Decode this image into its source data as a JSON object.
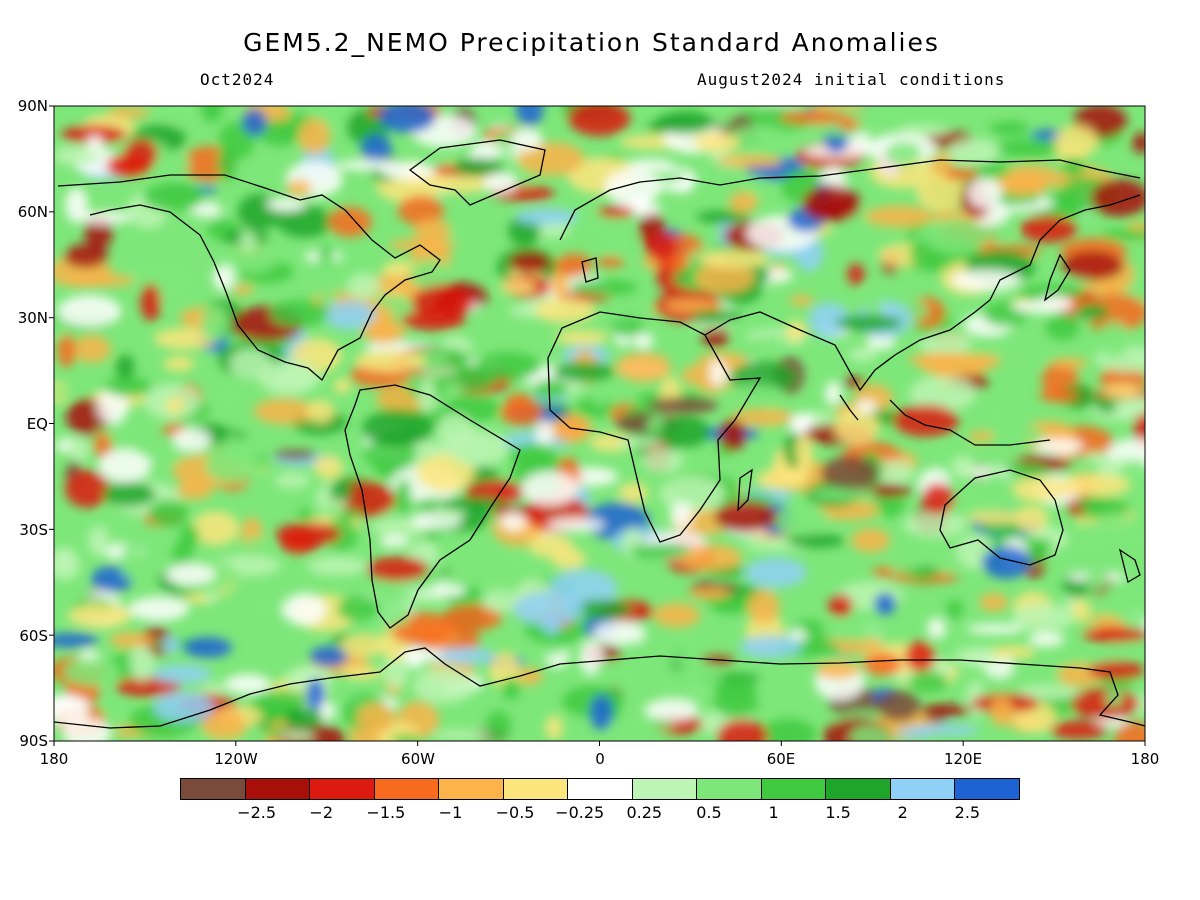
{
  "title": "GEM5.2_NEMO Precipitation Standard Anomalies",
  "valid_month": "Oct2024",
  "initial_conditions": "August2024 initial conditions",
  "map": {
    "lat_labels": [
      "90N",
      "60N",
      "30N",
      "EQ",
      "30S",
      "60S",
      "90S"
    ],
    "lon_labels": [
      "180",
      "120W",
      "60W",
      "0",
      "60E",
      "120E",
      "180"
    ]
  },
  "colorbar": {
    "colors": [
      "#7a4a3a",
      "#a80f0b",
      "#dc1a10",
      "#f86a1e",
      "#fbb34a",
      "#fde57e",
      "#ffffff",
      "#bdf5b4",
      "#7ee77a",
      "#3ec93f",
      "#1ea52a",
      "#8fd0f7",
      "#1d63d4"
    ],
    "labels": [
      "-2.5",
      "-2",
      "-1.5",
      "-1",
      "-0.5",
      "-0.25",
      "0.25",
      "0.5",
      "1",
      "1.5",
      "2",
      "2.5"
    ]
  }
}
